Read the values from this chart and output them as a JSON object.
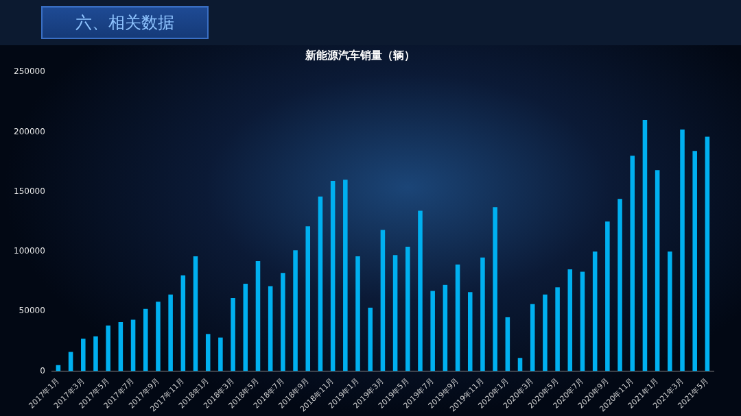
{
  "chart_data": {
    "type": "bar",
    "title": "新能源汽车销量（辆）",
    "annotations": [
      "六、相关数据"
    ],
    "categories": [
      "2017年1月",
      null,
      "2017年3月",
      null,
      "2017年5月",
      null,
      "2017年7月",
      null,
      "2017年9月",
      null,
      "2017年11月",
      null,
      "2018年1月",
      null,
      "2018年3月",
      null,
      "2018年5月",
      null,
      "2018年7月",
      null,
      "2018年9月",
      null,
      "2018年11月",
      null,
      "2019年1月",
      null,
      "2019年3月",
      null,
      "2019年5月",
      null,
      "2019年7月",
      null,
      "2019年9月",
      null,
      "2019年11月",
      null,
      "2020年1月",
      null,
      "2020年3月",
      null,
      "2020年5月",
      null,
      "2020年7月",
      null,
      "2020年9月",
      null,
      "2020年11月",
      null,
      "2021年1月",
      null,
      "2021年3月",
      null,
      "2021年5月"
    ],
    "values": [
      5000,
      16000,
      27000,
      29000,
      38000,
      41000,
      43000,
      52000,
      58000,
      64000,
      80000,
      96000,
      31000,
      28000,
      61000,
      73000,
      92000,
      71000,
      82000,
      101000,
      121000,
      146000,
      159000,
      160000,
      96000,
      53000,
      118000,
      97000,
      104000,
      134000,
      67000,
      72000,
      89000,
      66000,
      95000,
      137000,
      45000,
      11000,
      56000,
      64000,
      70000,
      85000,
      83000,
      100000,
      125000,
      144000,
      180000,
      210000,
      168000,
      100000,
      202000,
      184000,
      196000
    ],
    "color": "#00b0f0",
    "ylim": [
      0,
      250000
    ],
    "yticks": [
      0,
      50000,
      100000,
      150000,
      200000,
      250000
    ],
    "grid": false,
    "legend": false
  }
}
